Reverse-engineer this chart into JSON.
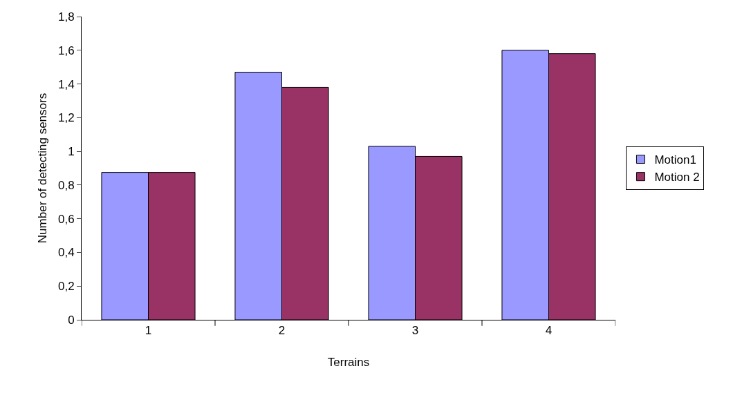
{
  "chart_data": {
    "type": "bar",
    "xlabel": "Terrains",
    "ylabel": "Number of detecting sensors",
    "categories": [
      "1",
      "2",
      "3",
      "4"
    ],
    "series": [
      {
        "name": "Motion1",
        "color": "#9999ff",
        "values": [
          0.875,
          1.47,
          1.03,
          1.6
        ]
      },
      {
        "name": "Motion 2",
        "color": "#993366",
        "values": [
          0.875,
          1.38,
          0.97,
          1.58
        ]
      }
    ],
    "ylim": [
      0,
      1.8
    ],
    "yticks": [
      0,
      {
        "value": 0.2,
        "label": "0,2"
      },
      {
        "value": 0.4,
        "label": "0,4"
      },
      {
        "value": 0.6,
        "label": "0,6"
      },
      {
        "value": 0.8,
        "label": "0,8"
      },
      1,
      {
        "value": 1.2,
        "label": "1,2"
      },
      {
        "value": 1.4,
        "label": "1,4"
      },
      {
        "value": 1.6,
        "label": "1,6"
      },
      {
        "value": 1.8,
        "label": "1,8"
      }
    ],
    "grid": false,
    "legend": "right"
  }
}
